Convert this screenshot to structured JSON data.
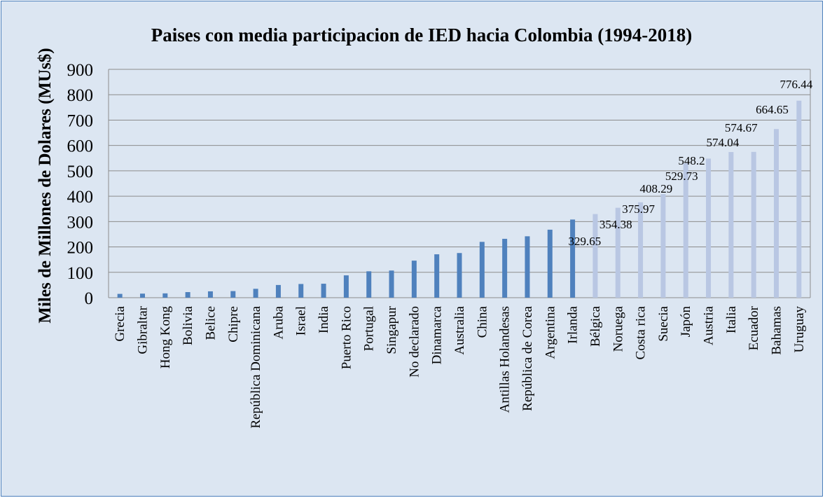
{
  "chart_data": {
    "type": "bar",
    "title": "Paises con media participacion de IED hacia Colombia (1994-2018)",
    "ylabel": "Miles de Millones  de Dolares (MUs$)",
    "xlabel": "",
    "ylim": [
      0,
      900
    ],
    "yticks": [
      "0",
      "100",
      "200",
      "300",
      "400",
      "500",
      "600",
      "700",
      "800",
      "900"
    ],
    "grid": true,
    "legend": "none",
    "colors": {
      "primary": "#4f81bd",
      "secondary": "#b9c7e3",
      "grid": "#8c8c8c",
      "background": "#dce6f2",
      "border": "#4a7ebb"
    },
    "categories": [
      "Grecia",
      "Gibraltar",
      "Hong Kong",
      "Bolivia",
      "Belice",
      "Chipre",
      "República Dominicana",
      "Aruba",
      "Israel",
      "India",
      "Puerto Rico",
      "Portugal",
      "Singapur",
      "No declarado",
      "Dinamarca",
      "Australia",
      "China",
      "Antillas Holandesas",
      "República de Corea",
      "Argentina",
      "Irlanda",
      "Bélgica",
      "Noruega",
      "Costa rica",
      "Suecia",
      "Japón",
      "Austria",
      "Italia",
      "Ecuador",
      "Bahamas",
      "Uruguay"
    ],
    "values": [
      15,
      16,
      17,
      22,
      25,
      26,
      35,
      50,
      54,
      55,
      88,
      104,
      107,
      146,
      171,
      176,
      220,
      232,
      242,
      268,
      308,
      329.65,
      354.38,
      375.97,
      408.29,
      529.73,
      548.2,
      574.04,
      574.67,
      664.65,
      776.44
    ],
    "highlight": [
      "primary",
      "primary",
      "primary",
      "primary",
      "primary",
      "primary",
      "primary",
      "primary",
      "primary",
      "primary",
      "primary",
      "primary",
      "primary",
      "primary",
      "primary",
      "primary",
      "primary",
      "primary",
      "primary",
      "primary",
      "primary",
      "secondary",
      "secondary",
      "secondary",
      "secondary",
      "secondary",
      "secondary",
      "secondary",
      "secondary",
      "secondary",
      "secondary"
    ],
    "data_labels": [
      "",
      "",
      "",
      "",
      "",
      "",
      "",
      "",
      "",
      "",
      "",
      "",
      "",
      "",
      "",
      "",
      "",
      "",
      "",
      "",
      "",
      "329.65",
      "354.38",
      "375.97",
      "408.29",
      "529.73",
      "548.2",
      "574.04",
      "574.67",
      "664.65",
      "776.44"
    ]
  }
}
